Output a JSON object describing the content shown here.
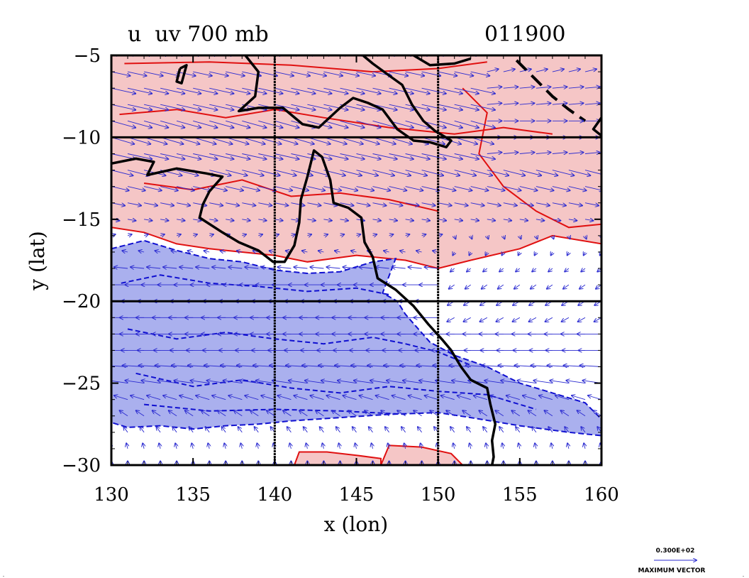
{
  "title_left": "u  uv 700 mb",
  "title_right": "011900",
  "x_axis_label": "x (lon)",
  "y_axis_label": "y (lat)",
  "legend": {
    "vector_value": "0.300E+02",
    "vector_label": "MAXIMUM VECTOR",
    "vector_color": "#3030d0"
  },
  "colors": {
    "positive_fill": "#f5c6c6",
    "positive_line": "#e01010",
    "negative_fill": "#aab0ee",
    "negative_line": "#1010d0",
    "coast": "#000000",
    "vector": "#2a2ad0"
  },
  "chart_data": {
    "type": "map",
    "xlim": [
      130,
      160
    ],
    "ylim": [
      -30,
      -5
    ],
    "x_ticks": [
      130,
      135,
      140,
      145,
      150,
      155,
      160
    ],
    "y_ticks": [
      -5,
      -10,
      -15,
      -20,
      -25,
      -30
    ],
    "x_tick_labels": [
      "130",
      "135",
      "140",
      "145",
      "150",
      "155",
      "160"
    ],
    "y_tick_labels": [
      "−5",
      "−10",
      "−15",
      "−20",
      "−25",
      "−30"
    ],
    "grid_lon": [
      140,
      150
    ],
    "grid_lat": [
      -10,
      -20
    ],
    "positive_region": [
      [
        130,
        -5
      ],
      [
        160,
        -5
      ],
      [
        160,
        -16.5
      ],
      [
        157,
        -16
      ],
      [
        155,
        -16.8
      ],
      [
        152,
        -17.5
      ],
      [
        150,
        -18
      ],
      [
        148,
        -17.5
      ],
      [
        145,
        -17.2
      ],
      [
        142,
        -17.6
      ],
      [
        140,
        -17.2
      ],
      [
        138,
        -17
      ],
      [
        136,
        -16.8
      ],
      [
        134,
        -16.5
      ],
      [
        132,
        -15.8
      ],
      [
        130,
        -15.5
      ]
    ],
    "positive_region_south": [
      [
        141.2,
        -30
      ],
      [
        141.5,
        -29.2
      ],
      [
        143.2,
        -29.2
      ],
      [
        145,
        -29.4
      ],
      [
        146.5,
        -29.6
      ],
      [
        146.5,
        -30
      ]
    ],
    "positive_region_southeast": [
      [
        146.5,
        -30
      ],
      [
        147,
        -28.8
      ],
      [
        149,
        -28.9
      ],
      [
        150.8,
        -29.3
      ],
      [
        151.5,
        -30
      ]
    ],
    "positive_inner_contours": [
      [
        [
          130.8,
          -5.5
        ],
        [
          136,
          -5.4
        ],
        [
          141,
          -5.6
        ],
        [
          146,
          -6
        ],
        [
          150,
          -5.8
        ],
        [
          153,
          -5.4
        ]
      ],
      [
        [
          130.5,
          -8.6
        ],
        [
          134,
          -8.3
        ],
        [
          137,
          -8.8
        ],
        [
          140,
          -8.3
        ],
        [
          143,
          -8.8
        ],
        [
          147,
          -9.4
        ],
        [
          151,
          -9.8
        ],
        [
          154,
          -9.4
        ],
        [
          157,
          -9.8
        ]
      ],
      [
        [
          132,
          -12.8
        ],
        [
          135,
          -13.2
        ],
        [
          138,
          -12.6
        ],
        [
          141,
          -13.6
        ],
        [
          144,
          -13.4
        ],
        [
          147,
          -13.8
        ],
        [
          150,
          -14.5
        ]
      ],
      [
        [
          151.5,
          -7
        ],
        [
          153,
          -8.5
        ],
        [
          152.5,
          -11
        ],
        [
          154,
          -13
        ],
        [
          156,
          -14.5
        ],
        [
          158,
          -15.5
        ],
        [
          160,
          -15.3
        ]
      ]
    ],
    "negative_region": [
      [
        130,
        -16.8
      ],
      [
        132,
        -16.3
      ],
      [
        134,
        -16.9
      ],
      [
        136,
        -17.4
      ],
      [
        138,
        -17.6
      ],
      [
        140,
        -18.1
      ],
      [
        142,
        -18.3
      ],
      [
        144,
        -18.2
      ],
      [
        146,
        -17.6
      ],
      [
        147.4,
        -17.4
      ],
      [
        146.6,
        -19.5
      ],
      [
        147.5,
        -20
      ],
      [
        148,
        -20.8
      ],
      [
        149.5,
        -22.5
      ],
      [
        151,
        -23.3
      ],
      [
        153,
        -24
      ],
      [
        155,
        -25
      ],
      [
        157,
        -25.6
      ],
      [
        159,
        -26.2
      ],
      [
        160,
        -27.2
      ],
      [
        160,
        -28.2
      ],
      [
        158,
        -28
      ],
      [
        155,
        -27.6
      ],
      [
        152,
        -27.1
      ],
      [
        150,
        -26.8
      ],
      [
        147,
        -26.9
      ],
      [
        144,
        -27.1
      ],
      [
        141,
        -27.3
      ],
      [
        139,
        -27.5
      ],
      [
        137,
        -27.6
      ],
      [
        135,
        -27.8
      ],
      [
        133,
        -27.6
      ],
      [
        131,
        -27.7
      ],
      [
        130,
        -27.4
      ]
    ],
    "negative_inner_contours": [
      [
        [
          130.6,
          -18.9
        ],
        [
          133,
          -18.4
        ],
        [
          136,
          -18.9
        ],
        [
          139,
          -19.1
        ],
        [
          142,
          -19.4
        ],
        [
          145,
          -19.2
        ],
        [
          147,
          -19.6
        ]
      ],
      [
        [
          131,
          -21.7
        ],
        [
          134,
          -22.3
        ],
        [
          137,
          -21.9
        ],
        [
          140,
          -22.3
        ],
        [
          143,
          -22.6
        ],
        [
          146,
          -22.2
        ],
        [
          148,
          -22.6
        ],
        [
          150,
          -23.1
        ],
        [
          152,
          -23.9
        ]
      ],
      [
        [
          131.5,
          -24.4
        ],
        [
          135,
          -25.2
        ],
        [
          138,
          -24.8
        ],
        [
          141,
          -25.3
        ],
        [
          144,
          -25.6
        ],
        [
          147,
          -25.2
        ],
        [
          150,
          -25.5
        ],
        [
          153,
          -25.7
        ],
        [
          156,
          -26.6
        ]
      ],
      [
        [
          132,
          -26.3
        ],
        [
          136,
          -26.7
        ],
        [
          140,
          -26.6
        ],
        [
          144,
          -26.7
        ],
        [
          148,
          -26.9
        ]
      ]
    ],
    "negative_dashed_black": [
      [
        154.8,
        -5.3
      ],
      [
        156,
        -6.5
      ],
      [
        157,
        -7.5
      ],
      [
        158,
        -8.3
      ],
      [
        159,
        -9
      ]
    ],
    "coastline": [
      [
        130,
        -11.6
      ],
      [
        131.5,
        -11.3
      ],
      [
        132.6,
        -11.5
      ],
      [
        132.2,
        -12.3
      ],
      [
        134,
        -11.9
      ],
      [
        135.8,
        -12.2
      ],
      [
        136.8,
        -12.4
      ],
      [
        136,
        -13.3
      ],
      [
        135.6,
        -14.1
      ],
      [
        135.4,
        -14.9
      ],
      [
        136.8,
        -15.8
      ],
      [
        137.8,
        -16.4
      ],
      [
        139,
        -16.9
      ],
      [
        139.9,
        -17.6
      ],
      [
        140.6,
        -17.6
      ],
      [
        141.2,
        -16.6
      ],
      [
        141.5,
        -15.2
      ],
      [
        141.6,
        -13.8
      ],
      [
        142,
        -12.4
      ],
      [
        142.4,
        -10.8
      ],
      [
        142.9,
        -11.2
      ],
      [
        143.4,
        -12.6
      ],
      [
        143.6,
        -14
      ],
      [
        144.5,
        -14.3
      ],
      [
        145.3,
        -14.9
      ],
      [
        145.5,
        -16.4
      ],
      [
        146,
        -17.3
      ],
      [
        146.3,
        -18.6
      ],
      [
        147.4,
        -19.3
      ],
      [
        148.5,
        -20.3
      ],
      [
        149.4,
        -21.4
      ],
      [
        150.3,
        -22.4
      ],
      [
        150.8,
        -23
      ],
      [
        151.4,
        -24
      ],
      [
        152,
        -24.8
      ],
      [
        153,
        -25.3
      ],
      [
        153.2,
        -26.3
      ],
      [
        153.5,
        -27.5
      ],
      [
        153.3,
        -28.5
      ],
      [
        153.4,
        -29.5
      ],
      [
        153.3,
        -30
      ]
    ],
    "coastline_north": [
      [
        138.2,
        -5
      ],
      [
        139,
        -6
      ],
      [
        138.8,
        -7.5
      ],
      [
        137.8,
        -8.4
      ],
      [
        139,
        -8.2
      ],
      [
        140.5,
        -8.2
      ],
      [
        141.7,
        -9.2
      ],
      [
        142.7,
        -9.4
      ],
      [
        144,
        -8.2
      ],
      [
        144.8,
        -7.6
      ],
      [
        145.7,
        -7.9
      ],
      [
        146.6,
        -8.3
      ],
      [
        147.5,
        -9.5
      ],
      [
        148.5,
        -10.2
      ],
      [
        149.5,
        -10.3
      ],
      [
        150.5,
        -10.6
      ],
      [
        150.8,
        -10.2
      ],
      [
        149.8,
        -9.6
      ],
      [
        149.1,
        -9
      ],
      [
        148.4,
        -8
      ],
      [
        147.8,
        -6.8
      ],
      [
        147.1,
        -6.3
      ],
      [
        146,
        -5.5
      ],
      [
        145.4,
        -5
      ]
    ],
    "coastline_small": [
      [
        [
          134.2,
          -5.8
        ],
        [
          134.6,
          -5.6
        ],
        [
          134.3,
          -6.7
        ],
        [
          134,
          -6.6
        ],
        [
          134.2,
          -5.8
        ]
      ],
      [
        [
          148.5,
          -5
        ],
        [
          149.5,
          -5.6
        ],
        [
          151,
          -5.5
        ],
        [
          152,
          -5.2
        ]
      ],
      [
        [
          160,
          -8.8
        ],
        [
          159.5,
          -9.5
        ],
        [
          160,
          -9.9
        ]
      ]
    ],
    "vector_grid": {
      "lon_step": 1,
      "lat_step": 1,
      "u_rows": [
        {
          "lat": -5,
          "u": 6,
          "v": 1
        },
        {
          "lat": -6,
          "u": 14,
          "v": -3
        },
        {
          "lat": -7,
          "u": 18,
          "v": -4
        },
        {
          "lat": -8,
          "u": 18,
          "v": -4
        },
        {
          "lat": -9,
          "u": 18,
          "v": -5
        },
        {
          "lat": -10,
          "u": 17,
          "v": -5
        },
        {
          "lat": -11,
          "u": 18,
          "v": -4
        },
        {
          "lat": -12,
          "u": 16,
          "v": -4
        },
        {
          "lat": -13,
          "u": 13,
          "v": -3
        },
        {
          "lat": -14,
          "u": 10,
          "v": -2
        },
        {
          "lat": -15,
          "u": 6,
          "v": -1
        },
        {
          "lat": -16,
          "u": 3,
          "v": 1
        },
        {
          "lat": -17,
          "u": -4,
          "v": 1
        },
        {
          "lat": -18,
          "u": -10,
          "v": 1
        },
        {
          "lat": -19,
          "u": -14,
          "v": 0
        },
        {
          "lat": -20,
          "u": -17,
          "v": 0
        },
        {
          "lat": -21,
          "u": -18,
          "v": 0
        },
        {
          "lat": -22,
          "u": -18,
          "v": 0
        },
        {
          "lat": -23,
          "u": -17,
          "v": 0
        },
        {
          "lat": -24,
          "u": -16,
          "v": 1
        },
        {
          "lat": -25,
          "u": -14,
          "v": 2
        },
        {
          "lat": -26,
          "u": -10,
          "v": 3
        },
        {
          "lat": -27,
          "u": -6,
          "v": 4
        },
        {
          "lat": -28,
          "u": -3,
          "v": 4
        },
        {
          "lat": -29,
          "u": -1,
          "v": 4
        },
        {
          "lat": -30,
          "u": 0,
          "v": 3
        }
      ]
    }
  }
}
